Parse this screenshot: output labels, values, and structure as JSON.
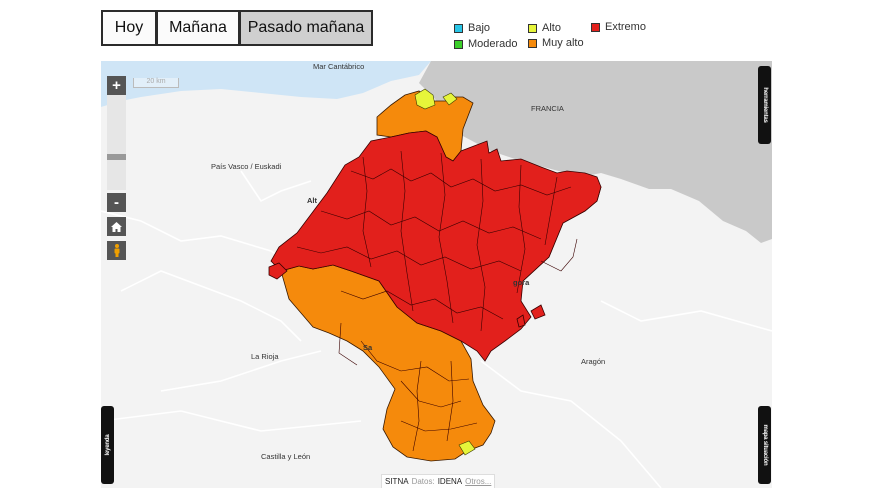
{
  "tabs": [
    {
      "label": "Hoy"
    },
    {
      "label": "Mañana"
    },
    {
      "label": "Pasado mañana",
      "selected": true
    }
  ],
  "legend": [
    {
      "label": "Bajo",
      "color": "#29c5e6"
    },
    {
      "label": "Alto",
      "color": "#e6f53a"
    },
    {
      "label": "Extremo",
      "color": "#e2201c"
    },
    {
      "label": "Moderado",
      "color": "#3ccf2b"
    },
    {
      "label": "Muy alto",
      "color": "#f58a0c"
    }
  ],
  "map": {
    "labels": {
      "sea": "Mar Cantábrico",
      "francia": "FRANCIA",
      "pais_vasco": "País Vasco / Euskadi",
      "la_rioja": "La Rioja",
      "aragon": "Aragón",
      "castilla": "Castilla y León",
      "alt_partial": "Alt",
      "zona_partial": "gora",
      "sa_partial": "Sa"
    },
    "scale": "20 km",
    "side_tabs": {
      "top_right": "herramientas",
      "bottom_right": "mapa situación",
      "bottom_left": "leyenda"
    },
    "attribution": {
      "source": "SITNA",
      "datos": "Datos:",
      "idena": "IDENA",
      "otros": "Otros..."
    },
    "fill_colors": {
      "extremo": "#e2201c",
      "muy_alto": "#f58a0c",
      "alto": "#e6f53a",
      "france": "#c9c9c9",
      "sea": "#cfe5f6",
      "land": "#f3f3f3"
    }
  },
  "zoom": {
    "plus": "+",
    "minus": "-"
  }
}
